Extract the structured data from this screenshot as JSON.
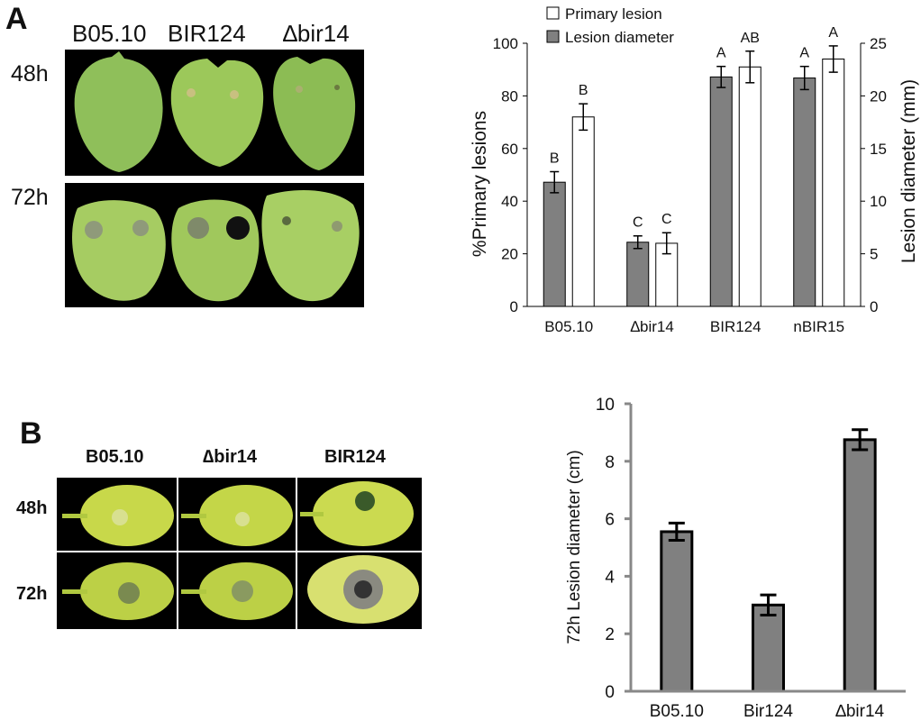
{
  "panelA": {
    "letter": "A",
    "photo_columns": [
      "B05.10",
      "BIR124",
      "∆bir14"
    ],
    "photo_rows": [
      "48h",
      "72h"
    ],
    "chart_data": {
      "type": "bar",
      "categories": [
        "B05.10",
        "∆bir14",
        "BIR124",
        "nBIR15"
      ],
      "ylabel": "%Primary lesions",
      "ylim": [
        0,
        100
      ],
      "yticks": [
        0,
        20,
        40,
        60,
        80,
        100
      ],
      "y2label": "Lesion diameter (mm)",
      "y2lim": [
        0,
        25
      ],
      "y2ticks": [
        0,
        5,
        10,
        15,
        20,
        25
      ],
      "legend_position": "top-left",
      "series": [
        {
          "name": "Lesion diameter",
          "axis": "right",
          "color": "#808080",
          "values": [
            11.8,
            6.1,
            21.8,
            21.7
          ],
          "errors": [
            1.0,
            0.6,
            1.0,
            1.1
          ],
          "letters": [
            "B",
            "C",
            "A",
            "A"
          ]
        },
        {
          "name": "Primary lesion",
          "axis": "left",
          "color": "#ffffff",
          "values": [
            72,
            24,
            91,
            94
          ],
          "errors": [
            5,
            4,
            6,
            5
          ],
          "letters": [
            "B",
            "C",
            "AB",
            "A"
          ]
        }
      ]
    }
  },
  "panelB": {
    "letter": "B",
    "photo_columns": [
      "B05.10",
      "∆bir14",
      "BIR124"
    ],
    "photo_rows": [
      "48h",
      "72h"
    ],
    "chart_data": {
      "type": "bar",
      "categories": [
        "B05.10",
        "Bir124",
        "∆bir14"
      ],
      "ylabel": "72h Lesion diameter (cm)",
      "ylim": [
        0,
        10
      ],
      "yticks": [
        0,
        2,
        4,
        6,
        8,
        10
      ],
      "series": [
        {
          "color": "#808080",
          "values": [
            5.55,
            3.0,
            8.75
          ],
          "errors": [
            0.3,
            0.35,
            0.35
          ]
        }
      ]
    }
  }
}
